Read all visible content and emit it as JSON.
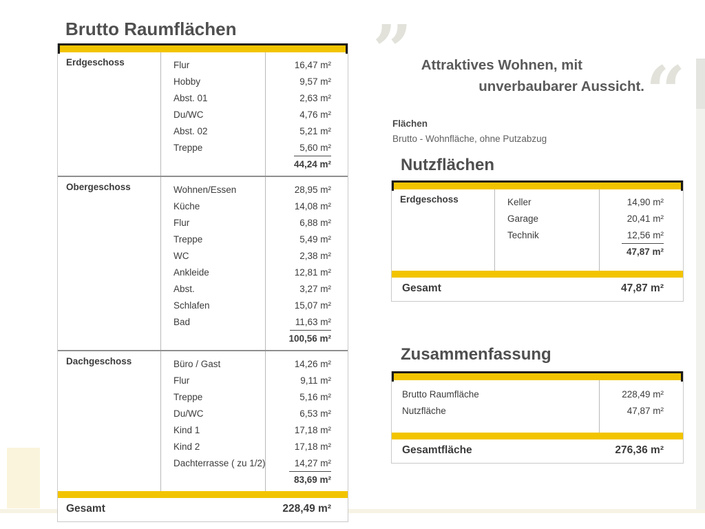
{
  "colors": {
    "accent_yellow": "#F2C400",
    "line_black": "#1a1a1a",
    "text_dark": "#3c3c3c",
    "quote_gray": "#e2e2db"
  },
  "brutto_table": {
    "title": "Brutto Raumflächen",
    "sections": [
      {
        "floor": "Erdgeschoss",
        "rooms": [
          {
            "name": "Flur",
            "value": "16,47 m²"
          },
          {
            "name": "Hobby",
            "value": "9,57 m²"
          },
          {
            "name": "Abst. 01",
            "value": "2,63 m²"
          },
          {
            "name": "Du/WC",
            "value": "4,76 m²"
          },
          {
            "name": "Abst. 02",
            "value": "5,21 m²"
          },
          {
            "name": "Treppe",
            "value": "5,60 m²"
          }
        ],
        "subtotal": "44,24 m²"
      },
      {
        "floor": "Obergeschoss",
        "rooms": [
          {
            "name": "Wohnen/Essen",
            "value": "28,95 m²"
          },
          {
            "name": "Küche",
            "value": "14,08 m²"
          },
          {
            "name": "Flur",
            "value": "6,88 m²"
          },
          {
            "name": "Treppe",
            "value": "5,49 m²"
          },
          {
            "name": "WC",
            "value": "2,38 m²"
          },
          {
            "name": "Ankleide",
            "value": "12,81 m²"
          },
          {
            "name": "Abst.",
            "value": "3,27 m²"
          },
          {
            "name": "Schlafen",
            "value": "15,07 m²"
          },
          {
            "name": "Bad",
            "value": "11,63 m²"
          }
        ],
        "subtotal": "100,56 m²"
      },
      {
        "floor": "Dachgeschoss",
        "rooms": [
          {
            "name": "Büro / Gast",
            "value": "14,26 m²"
          },
          {
            "name": "Flur",
            "value": "9,11 m²"
          },
          {
            "name": "Treppe",
            "value": "5,16 m²"
          },
          {
            "name": "Du/WC",
            "value": "6,53 m²"
          },
          {
            "name": "Kind 1",
            "value": "17,18 m²"
          },
          {
            "name": "Kind 2",
            "value": "17,18 m²"
          },
          {
            "name": "Dachterrasse ( zu 1/2)",
            "value": "14,27 m²"
          }
        ],
        "subtotal": "83,69 m²"
      }
    ],
    "total_label": "Gesamt",
    "total_value": "228,49 m²"
  },
  "quote": {
    "open_mark": "”",
    "close_mark": "“",
    "line1": "Attraktives Wohnen, mit",
    "line2": "unverbaubarer Aussicht."
  },
  "note": {
    "title": "Flächen",
    "subtitle": "Brutto - Wohnfläche, ohne Putzabzug"
  },
  "nutz_table": {
    "title": "Nutzflächen",
    "sections": [
      {
        "floor": "Erdgeschoss",
        "rooms": [
          {
            "name": "Keller",
            "value": "14,90 m²"
          },
          {
            "name": "Garage",
            "value": "20,41 m²"
          },
          {
            "name": "Technik",
            "value": "12,56 m²"
          }
        ],
        "subtotal": "47,87 m²"
      }
    ],
    "total_label": "Gesamt",
    "total_value": "47,87 m²"
  },
  "zusammenfassung": {
    "title": "Zusammenfassung",
    "rows": [
      {
        "label": "Brutto Raumfläche",
        "value": "228,49 m²"
      },
      {
        "label": "Nutzfläche",
        "value": "47,87 m²"
      }
    ],
    "total_label": "Gesamtfläche",
    "total_value": "276,36 m²"
  }
}
